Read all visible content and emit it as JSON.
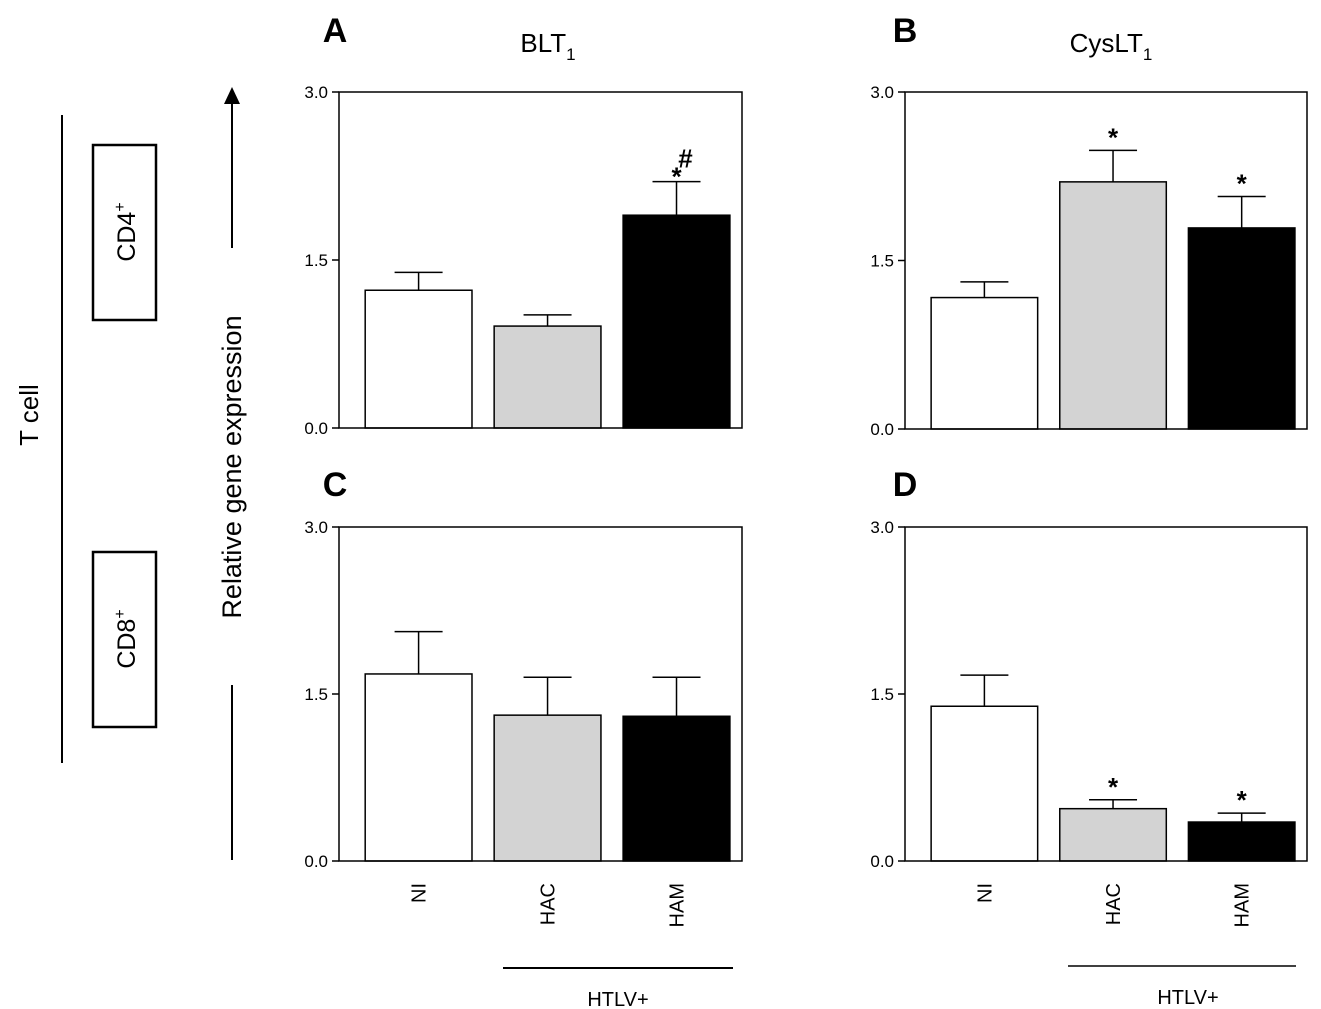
{
  "side_label": "T cell",
  "row_labels": [
    {
      "base": "CD4",
      "sup": "+"
    },
    {
      "base": "CD8",
      "sup": "+"
    }
  ],
  "ylabel": "Relative gene expression",
  "categories": [
    "NI",
    "HAC",
    "HAM"
  ],
  "group_label": "HTLV+",
  "colors": {
    "NI": "#ffffff",
    "HAC": "#d3d3d3",
    "HAM": "#000000"
  },
  "chart_data": [
    {
      "type": "bar",
      "panel": "A",
      "title": "BLT",
      "title_sub": "1",
      "categories": [
        "NI",
        "HAC",
        "HAM"
      ],
      "values": [
        1.23,
        0.91,
        1.9
      ],
      "errors": [
        0.16,
        0.1,
        0.3
      ],
      "annotations": [
        "",
        "",
        "*#"
      ],
      "ylim": [
        0,
        3.0
      ],
      "yticks": [
        "0.0",
        "1.5",
        "3.0"
      ]
    },
    {
      "type": "bar",
      "panel": "B",
      "title": "CysLT",
      "title_sub": "1",
      "categories": [
        "NI",
        "HAC",
        "HAM"
      ],
      "values": [
        1.17,
        2.2,
        1.79
      ],
      "errors": [
        0.14,
        0.28,
        0.28
      ],
      "annotations": [
        "",
        "*",
        "*"
      ],
      "ylim": [
        0,
        3.0
      ],
      "yticks": [
        "0.0",
        "1.5",
        "3.0"
      ]
    },
    {
      "type": "bar",
      "panel": "C",
      "title": "",
      "title_sub": "",
      "categories": [
        "NI",
        "HAC",
        "HAM"
      ],
      "values": [
        1.68,
        1.31,
        1.3
      ],
      "errors": [
        0.38,
        0.34,
        0.35
      ],
      "annotations": [
        "",
        "",
        ""
      ],
      "ylim": [
        0,
        3.0
      ],
      "yticks": [
        "0.0",
        "1.5",
        "3.0"
      ]
    },
    {
      "type": "bar",
      "panel": "D",
      "title": "",
      "title_sub": "",
      "categories": [
        "NI",
        "HAC",
        "HAM"
      ],
      "values": [
        1.39,
        0.47,
        0.35
      ],
      "errors": [
        0.28,
        0.08,
        0.08
      ],
      "annotations": [
        "",
        "*",
        "*"
      ],
      "ylim": [
        0,
        3.0
      ],
      "yticks": [
        "0.0",
        "1.5",
        "3.0"
      ]
    }
  ]
}
